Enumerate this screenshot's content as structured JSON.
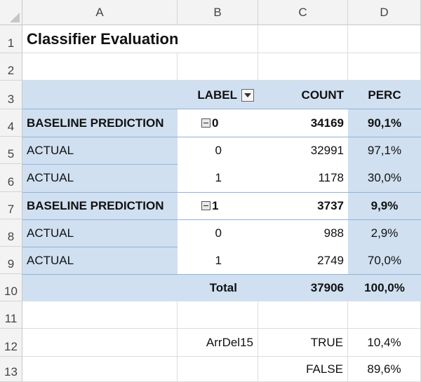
{
  "columns": [
    "A",
    "B",
    "C",
    "D"
  ],
  "rows": [
    "1",
    "2",
    "3",
    "4",
    "5",
    "6",
    "7",
    "8",
    "9",
    "10",
    "11",
    "12",
    "13"
  ],
  "title": "Classifier Evaluation",
  "pivot": {
    "header": {
      "label": "LABEL",
      "count": "COUNT",
      "perc": "PERC"
    },
    "groups": [
      {
        "name": "BASELINE PREDICTION",
        "value": "0",
        "count": "34169",
        "perc": "90,1%",
        "details": [
          {
            "name": "ACTUAL",
            "value": "0",
            "count": "32991",
            "perc": "97,1%"
          },
          {
            "name": "ACTUAL",
            "value": "1",
            "count": "1178",
            "perc": "30,0%"
          }
        ]
      },
      {
        "name": "BASELINE PREDICTION",
        "value": "1",
        "count": "3737",
        "perc": "9,9%",
        "details": [
          {
            "name": "ACTUAL",
            "value": "0",
            "count": "988",
            "perc": "2,9%"
          },
          {
            "name": "ACTUAL",
            "value": "1",
            "count": "2749",
            "perc": "70,0%"
          }
        ]
      }
    ],
    "total": {
      "label": "Total",
      "count": "37906",
      "perc": "100,0%"
    }
  },
  "extra": {
    "field": "ArrDel15",
    "rows": [
      {
        "key": "TRUE",
        "perc": "10,4%"
      },
      {
        "key": "FALSE",
        "perc": "89,6%"
      }
    ]
  },
  "colors": {
    "pivot_fill": "#d0e0f1",
    "header_fill": "#f3f3f3"
  }
}
